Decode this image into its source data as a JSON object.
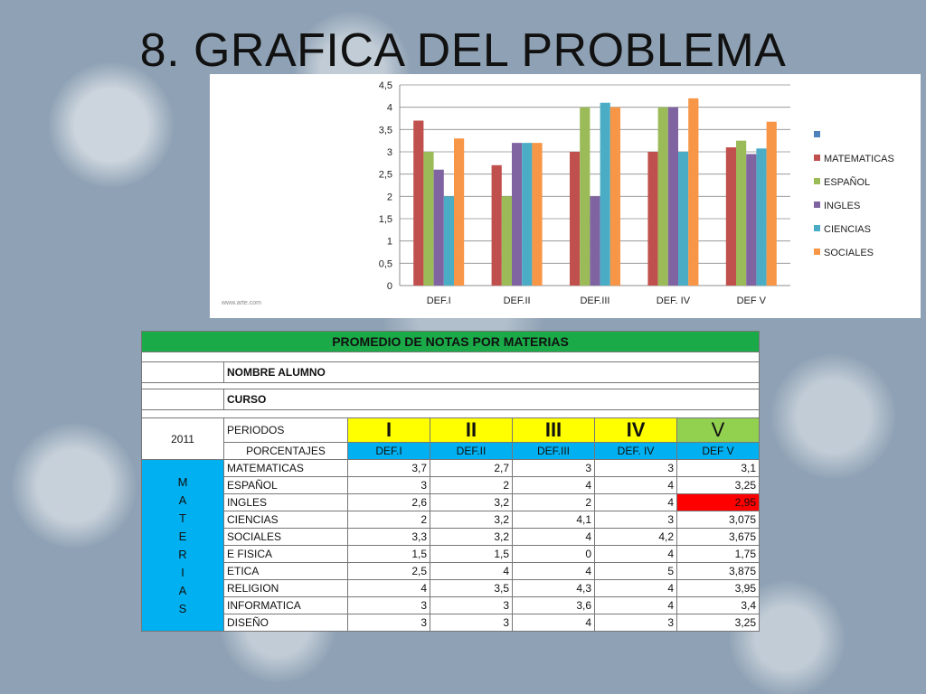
{
  "slide": {
    "title": "8. GRAFICA DEL PROBLEMA"
  },
  "chart_data": {
    "type": "bar",
    "categories": [
      "DEF.I",
      "DEF.II",
      "DEF.III",
      "DEF. IV",
      "DEF V"
    ],
    "series": [
      {
        "name": "MATEMATICAS",
        "color": "#c0504d",
        "values": [
          3.7,
          2.7,
          3,
          3,
          3.1
        ]
      },
      {
        "name": "ESPAÑOL",
        "color": "#9bbb59",
        "values": [
          3,
          2,
          4,
          4,
          3.25
        ]
      },
      {
        "name": "INGLES",
        "color": "#8064a2",
        "values": [
          2.6,
          3.2,
          2,
          4,
          2.95
        ]
      },
      {
        "name": "CIENCIAS",
        "color": "#4bacc6",
        "values": [
          2,
          3.2,
          4.1,
          3,
          3.075
        ]
      },
      {
        "name": "SOCIALES",
        "color": "#f79646",
        "values": [
          3.3,
          3.2,
          4,
          4.2,
          3.675
        ]
      }
    ],
    "legend_empty_entry_color": "#4f81bd",
    "y_ticks": [
      "0",
      "0,5",
      "1",
      "1,5",
      "2",
      "2,5",
      "3",
      "3,5",
      "4",
      "4,5"
    ],
    "ylim": [
      0,
      4.5
    ],
    "grid": true,
    "legend": "right",
    "watermark": "www.arte.com"
  },
  "table": {
    "title": "PROMEDIO DE NOTAS POR MATERIAS",
    "student_label": "NOMBRE ALUMNO",
    "course_label": "CURSO",
    "year": "2011",
    "periods_label": "PERIODOS",
    "periods": [
      "I",
      "II",
      "III",
      "IV",
      "V"
    ],
    "percentages_label": "PORCENTAJES",
    "period_codes": [
      "DEF.I",
      "DEF.II",
      "DEF.III",
      "DEF. IV",
      "DEF V"
    ],
    "side_label": [
      "M",
      "A",
      "T",
      "E",
      "R",
      "I",
      "A",
      "S"
    ],
    "highlight_color": "#ff0000",
    "rows": [
      {
        "subject": "MATEMATICAS",
        "values": [
          "3,7",
          "2,7",
          "3",
          "3",
          "3,1"
        ]
      },
      {
        "subject": "ESPAÑOL",
        "values": [
          "3",
          "2",
          "4",
          "4",
          "3,25"
        ]
      },
      {
        "subject": "INGLES",
        "values": [
          "2,6",
          "3,2",
          "2",
          "4",
          "2,95"
        ],
        "highlight": 4
      },
      {
        "subject": "CIENCIAS",
        "values": [
          "2",
          "3,2",
          "4,1",
          "3",
          "3,075"
        ]
      },
      {
        "subject": "SOCIALES",
        "values": [
          "3,3",
          "3,2",
          "4",
          "4,2",
          "3,675"
        ]
      },
      {
        "subject": "E FISICA",
        "values": [
          "1,5",
          "1,5",
          "0",
          "4",
          "1,75"
        ]
      },
      {
        "subject": "ETICA",
        "values": [
          "2,5",
          "4",
          "4",
          "5",
          "3,875"
        ]
      },
      {
        "subject": "RELIGION",
        "values": [
          "4",
          "3,5",
          "4,3",
          "4",
          "3,95"
        ]
      },
      {
        "subject": "INFORMATICA",
        "values": [
          "3",
          "3",
          "3,6",
          "4",
          "3,4"
        ]
      },
      {
        "subject": "DISEÑO",
        "values": [
          "3",
          "3",
          "4",
          "3",
          "3,25"
        ]
      }
    ]
  }
}
